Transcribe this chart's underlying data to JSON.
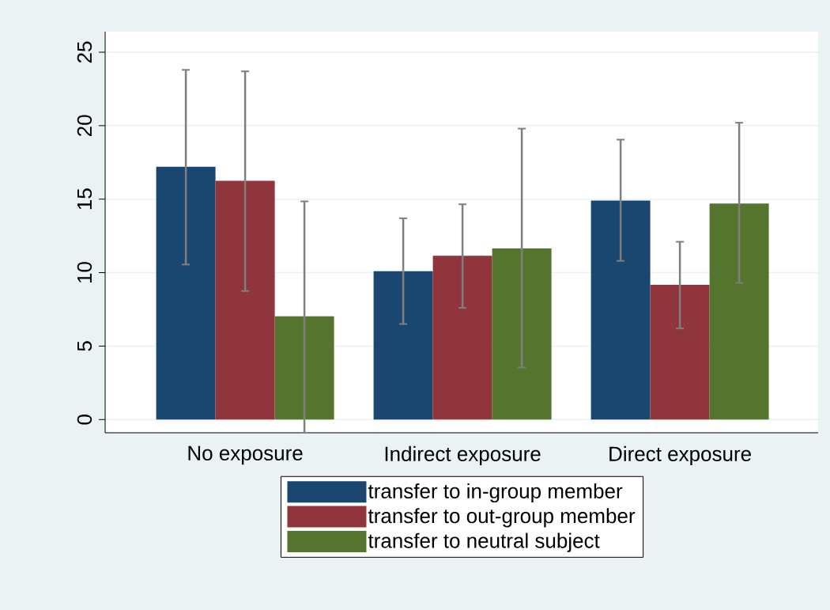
{
  "chart_data": {
    "type": "bar",
    "categories": [
      "No exposure",
      "Indirect exposure",
      "Direct exposure"
    ],
    "series": [
      {
        "name": "transfer to in-group member",
        "color": "#1a476f",
        "values": [
          17.2,
          10.1,
          14.9
        ],
        "errors": [
          [
            10.55,
            23.8
          ],
          [
            6.5,
            13.7
          ],
          [
            10.8,
            19.05
          ]
        ]
      },
      {
        "name": "transfer to out-group member",
        "color": "#90353b",
        "values": [
          16.25,
          11.15,
          9.17
        ],
        "errors": [
          [
            8.75,
            23.7
          ],
          [
            7.6,
            14.65
          ],
          [
            6.2,
            12.1
          ]
        ]
      },
      {
        "name": "transfer to neutral subject",
        "color": "#55752f",
        "values": [
          7.03,
          11.65,
          14.7
        ],
        "errors": [
          [
            -0.9,
            14.85
          ],
          [
            3.55,
            19.8
          ],
          [
            9.3,
            20.2
          ]
        ]
      }
    ],
    "ylim": [
      -0.9,
      26.4
    ],
    "yticks": [
      0,
      5,
      10,
      15,
      20,
      25
    ],
    "grid": "y",
    "legend": "bottom"
  }
}
